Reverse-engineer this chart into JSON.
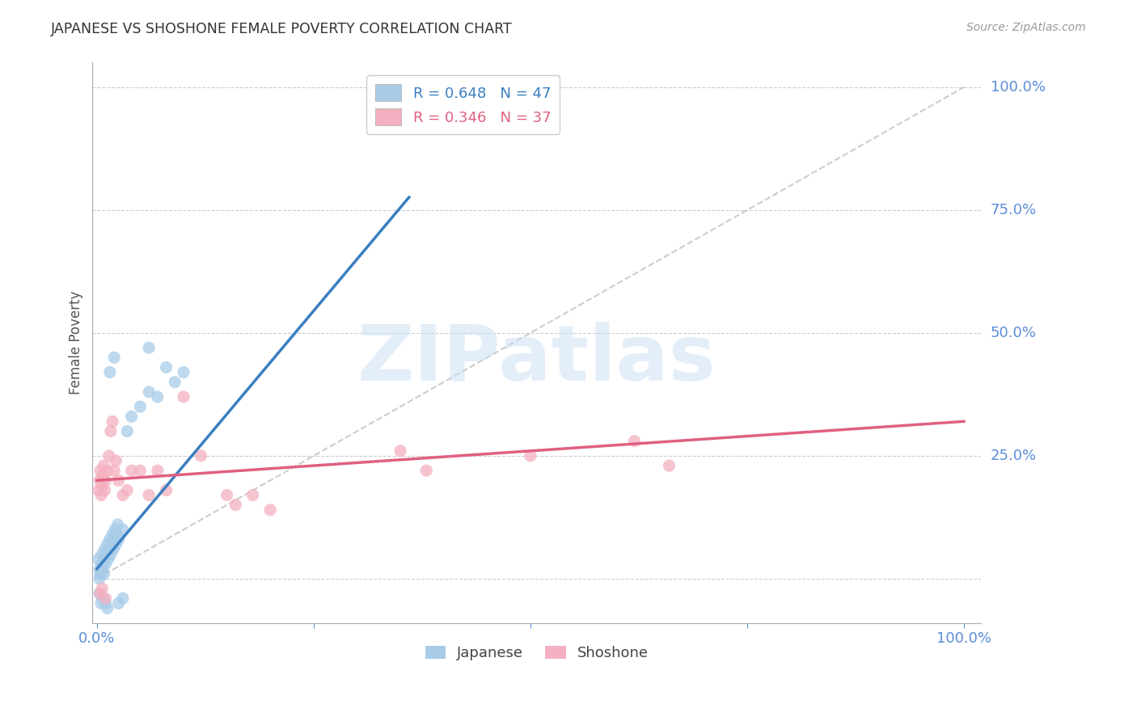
{
  "title": "JAPANESE VS SHOSHONE FEMALE POVERTY CORRELATION CHART",
  "source": "Source: ZipAtlas.com",
  "ylabel": "Female Poverty",
  "watermark": "ZIPatlas",
  "blue_color": "#a8cce8",
  "pink_color": "#f4b0c0",
  "blue_line_color": "#3a7fc1",
  "pink_line_color": "#e06080",
  "axis_label_color": "#5b8dd9",
  "title_color": "#333333",
  "grid_color": "#cccccc",
  "diag_color": "#cccccc",
  "jp_slope": 2.1,
  "jp_intercept": 0.02,
  "sh_slope": 0.12,
  "sh_intercept": 0.2,
  "japanese_points": [
    [
      0.002,
      0.04
    ],
    [
      0.003,
      0.02
    ],
    [
      0.004,
      0.01
    ],
    [
      0.005,
      0.03
    ],
    [
      0.006,
      0.05
    ],
    [
      0.007,
      0.02
    ],
    [
      0.008,
      0.04
    ],
    [
      0.009,
      0.06
    ],
    [
      0.01,
      0.03
    ],
    [
      0.011,
      0.05
    ],
    [
      0.012,
      0.07
    ],
    [
      0.013,
      0.04
    ],
    [
      0.014,
      0.06
    ],
    [
      0.015,
      0.08
    ],
    [
      0.016,
      0.05
    ],
    [
      0.017,
      0.07
    ],
    [
      0.018,
      0.09
    ],
    [
      0.019,
      0.06
    ],
    [
      0.02,
      0.08
    ],
    [
      0.021,
      0.1
    ],
    [
      0.022,
      0.07
    ],
    [
      0.023,
      0.09
    ],
    [
      0.024,
      0.11
    ],
    [
      0.025,
      0.08
    ],
    [
      0.03,
      0.1
    ],
    [
      0.035,
      0.3
    ],
    [
      0.04,
      0.33
    ],
    [
      0.05,
      0.35
    ],
    [
      0.06,
      0.38
    ],
    [
      0.07,
      0.37
    ],
    [
      0.09,
      0.4
    ],
    [
      0.1,
      0.42
    ],
    [
      0.003,
      -0.03
    ],
    [
      0.005,
      -0.05
    ],
    [
      0.007,
      -0.04
    ],
    [
      0.01,
      -0.05
    ],
    [
      0.012,
      -0.06
    ],
    [
      0.025,
      -0.05
    ],
    [
      0.03,
      -0.04
    ],
    [
      0.02,
      0.45
    ],
    [
      0.06,
      0.47
    ],
    [
      0.015,
      0.42
    ],
    [
      0.08,
      0.43
    ],
    [
      0.003,
      0.0
    ],
    [
      0.004,
      0.01
    ],
    [
      0.006,
      0.02
    ],
    [
      0.008,
      0.01
    ]
  ],
  "shoshone_points": [
    [
      0.002,
      0.18
    ],
    [
      0.003,
      0.2
    ],
    [
      0.004,
      0.22
    ],
    [
      0.005,
      0.17
    ],
    [
      0.006,
      0.19
    ],
    [
      0.007,
      0.21
    ],
    [
      0.008,
      0.23
    ],
    [
      0.009,
      0.18
    ],
    [
      0.01,
      0.2
    ],
    [
      0.012,
      0.22
    ],
    [
      0.014,
      0.25
    ],
    [
      0.016,
      0.3
    ],
    [
      0.018,
      0.32
    ],
    [
      0.02,
      0.22
    ],
    [
      0.022,
      0.24
    ],
    [
      0.025,
      0.2
    ],
    [
      0.03,
      0.17
    ],
    [
      0.035,
      0.18
    ],
    [
      0.04,
      0.22
    ],
    [
      0.05,
      0.22
    ],
    [
      0.06,
      0.17
    ],
    [
      0.07,
      0.22
    ],
    [
      0.08,
      0.18
    ],
    [
      0.1,
      0.37
    ],
    [
      0.12,
      0.25
    ],
    [
      0.15,
      0.17
    ],
    [
      0.16,
      0.15
    ],
    [
      0.18,
      0.17
    ],
    [
      0.2,
      0.14
    ],
    [
      0.35,
      0.26
    ],
    [
      0.38,
      0.22
    ],
    [
      0.5,
      0.25
    ],
    [
      0.62,
      0.28
    ],
    [
      0.66,
      0.23
    ],
    [
      0.004,
      -0.03
    ],
    [
      0.006,
      -0.02
    ],
    [
      0.01,
      -0.04
    ]
  ]
}
